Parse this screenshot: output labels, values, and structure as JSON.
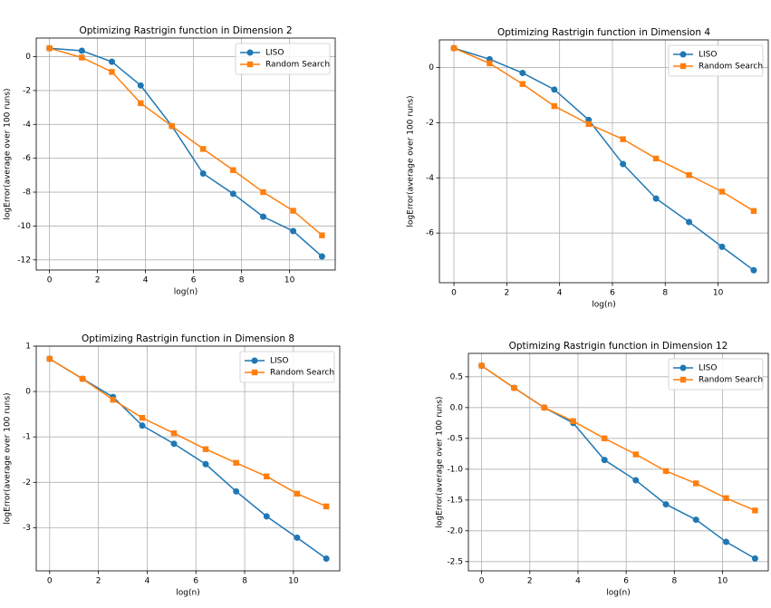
{
  "chart_data": [
    {
      "type": "line",
      "title": "Optimizing Rastrigin function in Dimension 2",
      "xlabel": "log(n)",
      "ylabel": "logError(average over 100 runs)",
      "x": [
        0,
        1.35,
        2.6,
        3.8,
        5.1,
        6.4,
        7.65,
        8.9,
        10.15,
        11.35
      ],
      "series": [
        {
          "name": "LISO",
          "color": "#1f77b4",
          "marker": "circle",
          "values": [
            0.5,
            0.35,
            -0.3,
            -1.7,
            -4.1,
            -6.9,
            -8.1,
            -9.45,
            -10.3,
            -11.8
          ]
        },
        {
          "name": "Random Search",
          "color": "#ff7f0e",
          "marker": "square",
          "values": [
            0.5,
            -0.05,
            -0.9,
            -2.75,
            -4.1,
            -5.45,
            -6.7,
            -8.0,
            -9.1,
            -10.55
          ]
        }
      ],
      "xlim": [
        -0.55,
        11.9
      ],
      "xticks": [
        0,
        2,
        4,
        6,
        8,
        10
      ],
      "ylim": [
        -12.6,
        1.1
      ],
      "yticks": [
        0,
        -2,
        -4,
        -6,
        -8,
        -10,
        -12
      ],
      "grid": true,
      "legend": "upper right"
    },
    {
      "type": "line",
      "title": "Optimizing Rastrigin function in Dimension 4",
      "xlabel": "log(n)",
      "ylabel": "logError(average over 100 runs)",
      "x": [
        0,
        1.35,
        2.6,
        3.8,
        5.1,
        6.4,
        7.65,
        8.9,
        10.15,
        11.35
      ],
      "series": [
        {
          "name": "LISO",
          "color": "#1f77b4",
          "marker": "circle",
          "values": [
            0.7,
            0.3,
            -0.2,
            -0.8,
            -1.9,
            -3.5,
            -4.75,
            -5.6,
            -6.5,
            -7.35
          ]
        },
        {
          "name": "Random Search",
          "color": "#ff7f0e",
          "marker": "square",
          "values": [
            0.7,
            0.15,
            -0.6,
            -1.4,
            -2.05,
            -2.6,
            -3.3,
            -3.9,
            -4.5,
            -5.2
          ]
        }
      ],
      "xlim": [
        -0.55,
        11.9
      ],
      "xticks": [
        0,
        2,
        4,
        6,
        8,
        10
      ],
      "ylim": [
        -7.8,
        1.0
      ],
      "yticks": [
        0,
        -2,
        -4,
        -6
      ],
      "grid": true,
      "legend": "upper right"
    },
    {
      "type": "line",
      "title": "Optimizing Rastrigin function in Dimension 8",
      "xlabel": "log(n)",
      "ylabel": "logError(average over 100 runs)",
      "x": [
        0,
        1.35,
        2.6,
        3.8,
        5.1,
        6.4,
        7.65,
        8.9,
        10.15,
        11.35
      ],
      "series": [
        {
          "name": "LISO",
          "color": "#1f77b4",
          "marker": "circle",
          "values": [
            0.72,
            0.28,
            -0.12,
            -0.75,
            -1.15,
            -1.6,
            -2.2,
            -2.75,
            -3.22,
            -3.68
          ]
        },
        {
          "name": "Random Search",
          "color": "#ff7f0e",
          "marker": "square",
          "values": [
            0.72,
            0.28,
            -0.18,
            -0.58,
            -0.92,
            -1.27,
            -1.57,
            -1.87,
            -2.25,
            -2.53
          ]
        }
      ],
      "xlim": [
        -0.55,
        11.9
      ],
      "xticks": [
        0,
        2,
        4,
        6,
        8,
        10
      ],
      "ylim": [
        -3.95,
        1.0
      ],
      "yticks": [
        1,
        0,
        -1,
        -2,
        -3
      ],
      "grid": true,
      "legend": "upper right"
    },
    {
      "type": "line",
      "title": "Optimizing Rastrigin function in Dimension 12",
      "xlabel": "log(n)",
      "ylabel": "logError(average over 100 runs)",
      "x": [
        0,
        1.35,
        2.6,
        3.8,
        5.1,
        6.4,
        7.65,
        8.9,
        10.15,
        11.35
      ],
      "series": [
        {
          "name": "LISO",
          "color": "#1f77b4",
          "marker": "circle",
          "values": [
            0.68,
            0.32,
            0.0,
            -0.25,
            -0.85,
            -1.18,
            -1.57,
            -1.82,
            -2.18,
            -2.45
          ]
        },
        {
          "name": "Random Search",
          "color": "#ff7f0e",
          "marker": "square",
          "values": [
            0.68,
            0.32,
            0.0,
            -0.22,
            -0.5,
            -0.76,
            -1.03,
            -1.23,
            -1.47,
            -1.67
          ]
        }
      ],
      "xlim": [
        -0.55,
        11.9
      ],
      "xticks": [
        0,
        2,
        4,
        6,
        8,
        10
      ],
      "ylim": [
        -2.65,
        0.88
      ],
      "yticks": [
        0.5,
        {
          "value": 0,
          "label": "0.0"
        },
        -0.5,
        {
          "value": -1,
          "label": "-1.0"
        },
        -1.5,
        {
          "value": -2,
          "label": "-2.0"
        },
        -2.5
      ],
      "grid": true,
      "legend": "upper right"
    }
  ]
}
